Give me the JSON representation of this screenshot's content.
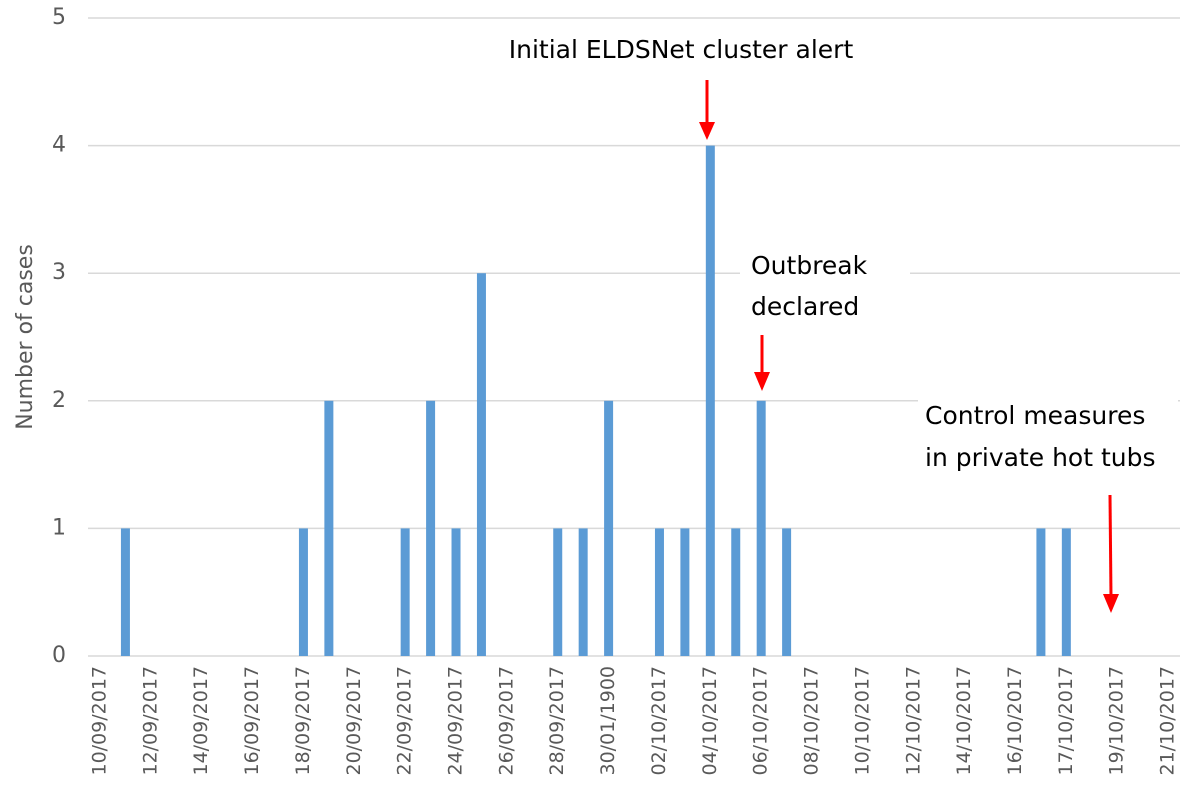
{
  "chart_data": {
    "type": "bar",
    "y_label": "Number of cases",
    "categories": [
      "10/09/2017",
      null,
      "12/09/2017",
      null,
      "14/09/2017",
      null,
      "16/09/2017",
      null,
      "18/09/2017",
      null,
      "20/09/2017",
      null,
      "22/09/2017",
      null,
      "24/09/2017",
      null,
      "26/09/2017",
      null,
      "28/09/2017",
      null,
      "30/01/1900",
      null,
      "02/10/2017",
      null,
      "04/10/2017",
      null,
      "06/10/2017",
      null,
      "08/10/2017",
      null,
      "10/10/2017",
      null,
      "12/10/2017",
      null,
      "14/10/2017",
      null,
      "16/10/2017",
      null,
      "17/10/2017",
      null,
      "19/10/2017",
      null,
      "21/10/2017"
    ],
    "values": [
      0,
      1,
      0,
      0,
      0,
      0,
      0,
      0,
      1,
      2,
      0,
      0,
      1,
      2,
      1,
      3,
      0,
      0,
      1,
      1,
      2,
      0,
      1,
      1,
      4,
      1,
      2,
      1,
      0,
      0,
      0,
      0,
      0,
      0,
      0,
      0,
      0,
      1,
      1,
      0,
      0,
      0,
      0
    ],
    "color": "#5b9bd5",
    "ylim": [
      0,
      5
    ],
    "yticks": [
      0,
      1,
      2,
      3,
      4,
      5
    ],
    "grid": true,
    "annotations": [
      {
        "text": [
          "Initial ELDSNet cluster alert"
        ]
      },
      {
        "text": [
          "Outbreak",
          "declared"
        ]
      },
      {
        "text": [
          "Control measures",
          "in private hot tubs"
        ]
      }
    ]
  }
}
